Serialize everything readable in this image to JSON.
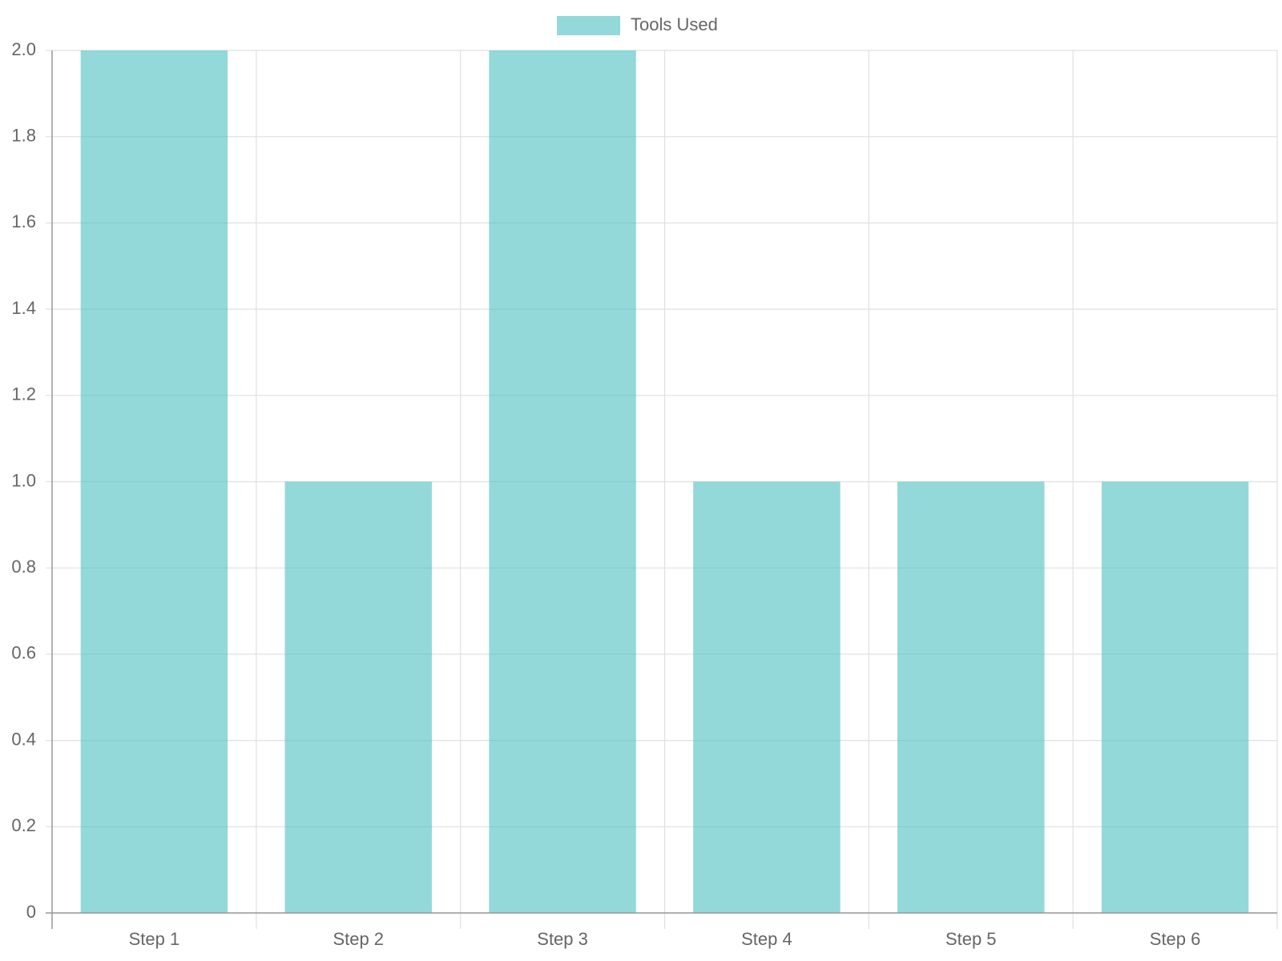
{
  "chart_data": {
    "type": "bar",
    "categories": [
      "Step 1",
      "Step 2",
      "Step 3",
      "Step 4",
      "Step 5",
      "Step 6"
    ],
    "series": [
      {
        "name": "Tools Used",
        "color": "rgba(75, 192, 192, 0.6)",
        "values": [
          2,
          1,
          2,
          1,
          1,
          1
        ]
      }
    ],
    "ylim": [
      0,
      2
    ],
    "yticks": [
      0,
      0.2,
      0.4,
      0.6,
      0.8,
      {
        "value": 1,
        "label": "1.0"
      },
      1.2,
      1.4,
      1.6,
      1.8,
      {
        "value": 2,
        "label": "2.0"
      }
    ],
    "grid": true,
    "legend": "top"
  }
}
